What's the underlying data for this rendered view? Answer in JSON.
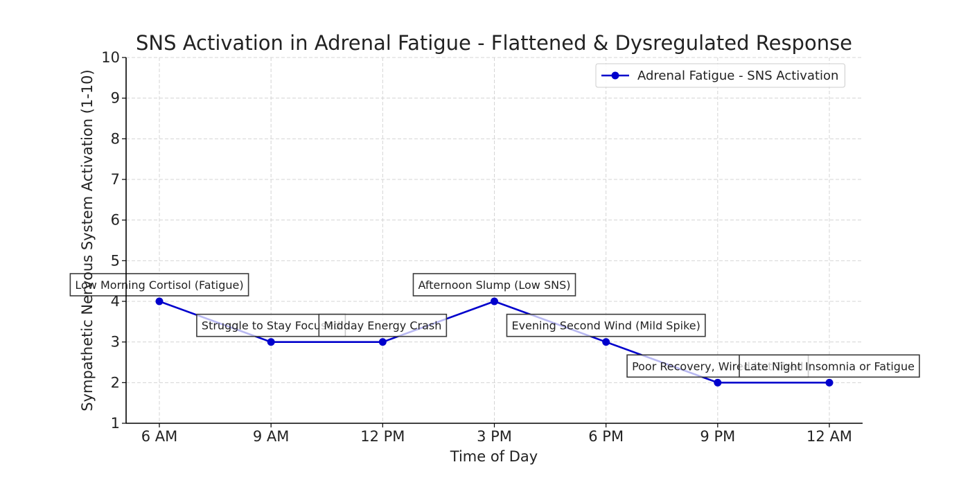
{
  "chart_data": {
    "type": "line",
    "title": "SNS Activation in Adrenal Fatigue - Flattened & Dysregulated Response",
    "xlabel": "Time of Day",
    "ylabel": "Sympathetic Nervous System Activation (1-10)",
    "categories": [
      "6 AM",
      "9 AM",
      "12 PM",
      "3 PM",
      "6 PM",
      "9 PM",
      "12 AM"
    ],
    "ylim": [
      1,
      10
    ],
    "yticks": [
      "1",
      "2",
      "3",
      "4",
      "5",
      "6",
      "7",
      "8",
      "9",
      "10"
    ],
    "grid": true,
    "legend_position": "top-right",
    "series": [
      {
        "name": "Adrenal Fatigue - SNS Activation",
        "color": "#0000cc",
        "values": [
          4,
          3,
          3,
          4,
          3,
          2,
          2
        ]
      }
    ],
    "annotations": [
      "Low Morning Cortisol (Fatigue)",
      "Struggle to Stay Focused",
      "Midday Energy Crash",
      "Afternoon Slump (Low SNS)",
      "Evening Second Wind (Mild Spike)",
      "Poor Recovery, Wired but Tired",
      "Late Night Insomnia or Fatigue"
    ]
  }
}
